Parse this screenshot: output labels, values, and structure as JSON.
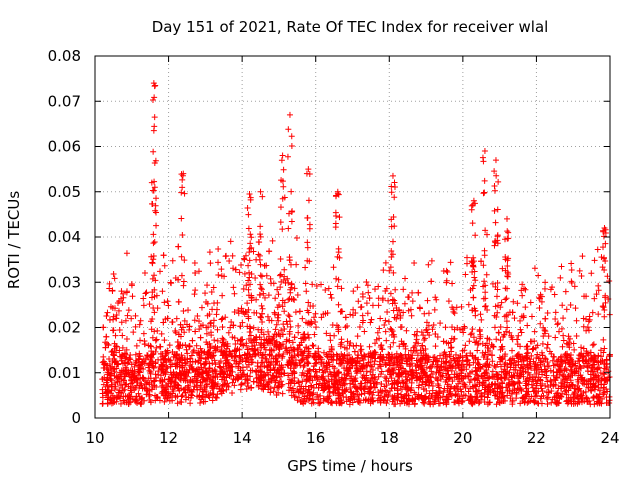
{
  "chart_data": {
    "type": "scatter",
    "title": "Day 151 of 2021, Rate Of TEC Index for receiver wlal",
    "xlabel": "GPS time / hours",
    "ylabel": "ROTI / TECUs",
    "xlim": [
      10,
      24
    ],
    "ylim": [
      0,
      0.08
    ],
    "x_ticks": [
      "10",
      "12",
      "14",
      "16",
      "18",
      "20",
      "22",
      "24"
    ],
    "y_ticks": [
      "0",
      "0.01",
      "0.02",
      "0.03",
      "0.04",
      "0.05",
      "0.06",
      "0.07",
      "0.08"
    ],
    "grid": true,
    "marker": "+",
    "color": "#ff0000",
    "series": [
      {
        "name": "ROTI",
        "approx_point_count": 4000,
        "baseline_range": [
          0.003,
          0.02
        ],
        "peaks": [
          {
            "x": 11.6,
            "y": 0.074
          },
          {
            "x": 11.6,
            "y": 0.0635
          },
          {
            "x": 12.4,
            "y": 0.054
          },
          {
            "x": 14.2,
            "y": 0.0495
          },
          {
            "x": 14.5,
            "y": 0.05
          },
          {
            "x": 15.1,
            "y": 0.058
          },
          {
            "x": 15.3,
            "y": 0.067
          },
          {
            "x": 15.8,
            "y": 0.055
          },
          {
            "x": 16.6,
            "y": 0.05
          },
          {
            "x": 18.1,
            "y": 0.0535
          },
          {
            "x": 20.3,
            "y": 0.048
          },
          {
            "x": 20.6,
            "y": 0.059
          },
          {
            "x": 20.9,
            "y": 0.057
          },
          {
            "x": 21.2,
            "y": 0.044
          },
          {
            "x": 23.85,
            "y": 0.042
          }
        ]
      }
    ]
  }
}
